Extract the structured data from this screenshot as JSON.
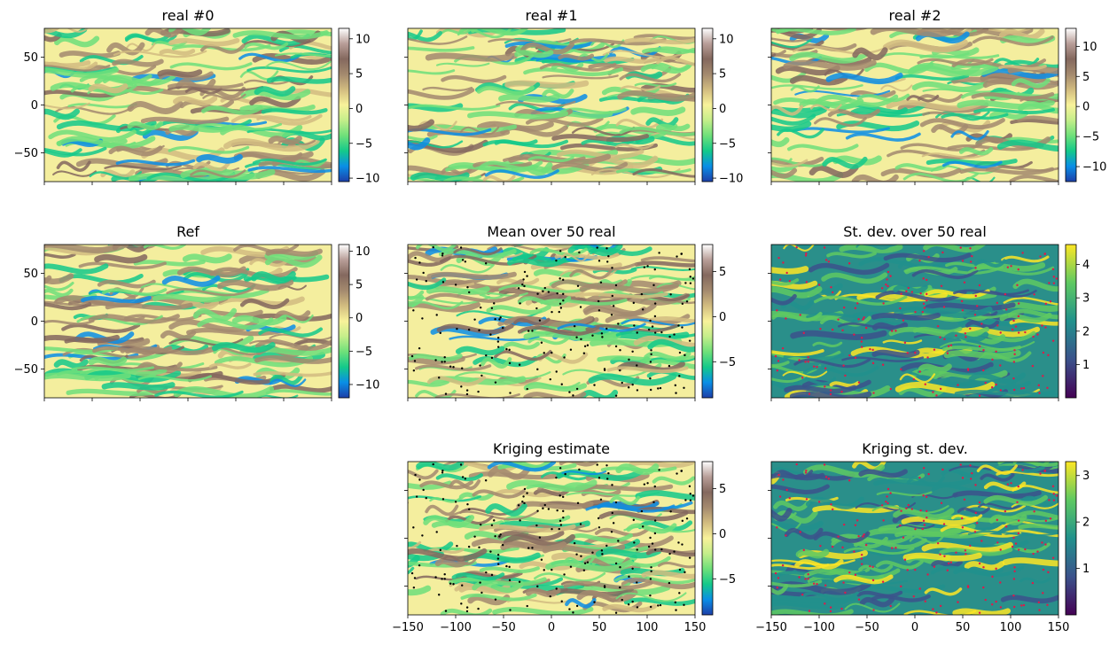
{
  "chart_data": [
    {
      "type": "heatmap",
      "title": "real #0",
      "xlim": [
        -150,
        150
      ],
      "ylim": [
        -80,
        80
      ],
      "xticks": [
        -150,
        -100,
        -50,
        0,
        50,
        100,
        150
      ],
      "xticklabels_shown": false,
      "yticks": [
        50,
        0,
        -50
      ],
      "yticklabels_shown": true,
      "cmap": "terrain",
      "colorbar": {
        "ticks": [
          10,
          5,
          0,
          -5,
          -10
        ],
        "range": [
          -10.5,
          11.5
        ]
      },
      "scatter_points": false
    },
    {
      "type": "heatmap",
      "title": "real #1",
      "xlim": [
        -150,
        150
      ],
      "ylim": [
        -80,
        80
      ],
      "xticks": [
        -150,
        -100,
        -50,
        0,
        50,
        100,
        150
      ],
      "xticklabels_shown": false,
      "yticks": [
        50,
        0,
        -50
      ],
      "yticklabels_shown": false,
      "cmap": "terrain",
      "colorbar": {
        "ticks": [
          10,
          5,
          0,
          -5,
          -10
        ],
        "range": [
          -10.5,
          11.5
        ]
      },
      "scatter_points": false
    },
    {
      "type": "heatmap",
      "title": "real #2",
      "xlim": [
        -150,
        150
      ],
      "ylim": [
        -80,
        80
      ],
      "xticks": [
        -150,
        -100,
        -50,
        0,
        50,
        100,
        150
      ],
      "xticklabels_shown": false,
      "yticks": [
        50,
        0,
        -50
      ],
      "yticklabels_shown": false,
      "cmap": "terrain",
      "colorbar": {
        "ticks": [
          10,
          5,
          0,
          -5,
          -10
        ],
        "range": [
          -12.5,
          13
        ]
      },
      "scatter_points": false
    },
    {
      "type": "heatmap",
      "title": "Ref",
      "xlim": [
        -150,
        150
      ],
      "ylim": [
        -80,
        80
      ],
      "xticks": [
        -150,
        -100,
        -50,
        0,
        50,
        100,
        150
      ],
      "xticklabels_shown": false,
      "yticks": [
        50,
        0,
        -50
      ],
      "yticklabels_shown": true,
      "cmap": "terrain",
      "colorbar": {
        "ticks": [
          10,
          5,
          0,
          -5,
          -10
        ],
        "range": [
          -12,
          11
        ]
      },
      "scatter_points": false
    },
    {
      "type": "heatmap",
      "title": "Mean over 50 real",
      "xlim": [
        -150,
        150
      ],
      "ylim": [
        -80,
        80
      ],
      "xticks": [
        -150,
        -100,
        -50,
        0,
        50,
        100,
        150
      ],
      "xticklabels_shown": false,
      "yticks": [
        50,
        0,
        -50
      ],
      "yticklabels_shown": false,
      "cmap": "terrain",
      "colorbar": {
        "ticks": [
          5,
          0,
          -5
        ],
        "range": [
          -9,
          8
        ]
      },
      "scatter_points": true,
      "scatter_color": "#000000"
    },
    {
      "type": "heatmap",
      "title": "St. dev. over 50 real",
      "xlim": [
        -150,
        150
      ],
      "ylim": [
        -80,
        80
      ],
      "xticks": [
        -150,
        -100,
        -50,
        0,
        50,
        100,
        150
      ],
      "xticklabels_shown": false,
      "yticks": [
        50,
        0,
        -50
      ],
      "yticklabels_shown": false,
      "cmap": "viridis",
      "colorbar": {
        "ticks": [
          4,
          3,
          2,
          1
        ],
        "range": [
          0,
          4.6
        ]
      },
      "scatter_points": true,
      "scatter_color": "#e0184a"
    },
    {
      "type": "heatmap",
      "title": "Kriging estimate",
      "xlim": [
        -150,
        150
      ],
      "ylim": [
        -80,
        80
      ],
      "xticks": [
        -150,
        -100,
        -50,
        0,
        50,
        100,
        150
      ],
      "xticklabels_shown": true,
      "yticks": [
        50,
        0,
        -50
      ],
      "yticklabels_shown": false,
      "cmap": "terrain",
      "colorbar": {
        "ticks": [
          5,
          0,
          -5
        ],
        "range": [
          -9,
          8
        ]
      },
      "scatter_points": true,
      "scatter_color": "#000000"
    },
    {
      "type": "heatmap",
      "title": "Kriging st. dev.",
      "xlim": [
        -150,
        150
      ],
      "ylim": [
        -80,
        80
      ],
      "xticks": [
        -150,
        -100,
        -50,
        0,
        50,
        100,
        150
      ],
      "xticklabels_shown": true,
      "yticks": [
        50,
        0,
        -50
      ],
      "yticklabels_shown": false,
      "cmap": "viridis",
      "colorbar": {
        "ticks": [
          3,
          2,
          1
        ],
        "range": [
          0,
          3.3
        ]
      },
      "scatter_points": true,
      "scatter_color": "#e0184a"
    }
  ],
  "colormaps": {
    "terrain": [
      "#1d3fa8",
      "#0a8ee6",
      "#14c98a",
      "#6ee07a",
      "#c4ee8a",
      "#f8f29a",
      "#d2bc80",
      "#a48a6e",
      "#84685e",
      "#b89e98",
      "#ffffff"
    ],
    "viridis": [
      "#440154",
      "#3b528b",
      "#21918c",
      "#5ec962",
      "#fde725"
    ]
  }
}
